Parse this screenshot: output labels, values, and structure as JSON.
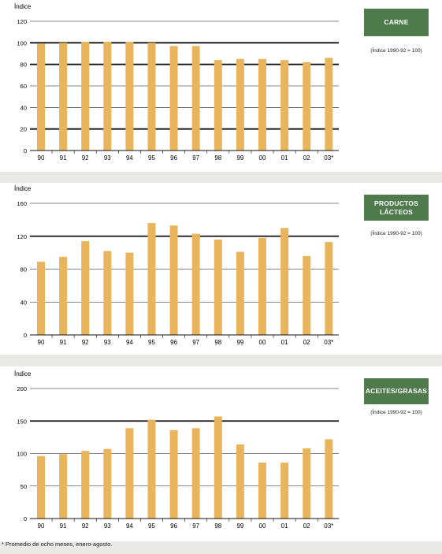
{
  "footnote": "* Promedio de ocho meses, enero-agosto.",
  "chart_data": [
    {
      "type": "bar",
      "title": "CARNE",
      "subtitle": "(Índice 1990-92 = 100)",
      "ylabel": "Índice",
      "xlabel": "",
      "categories": [
        "90",
        "91",
        "92",
        "93",
        "94",
        "95",
        "96",
        "97",
        "98",
        "99",
        "00",
        "01",
        "02",
        "03*"
      ],
      "values": [
        99,
        100,
        101,
        101,
        101,
        100,
        97,
        97,
        84,
        85,
        85,
        84,
        82,
        86
      ],
      "ylim": [
        0,
        120
      ],
      "yticks": [
        0,
        20,
        40,
        60,
        80,
        100,
        120
      ],
      "bold_gridlines": [
        20,
        80,
        100
      ],
      "bar_color": "#e8b55c",
      "grid": true,
      "legend": "none"
    },
    {
      "type": "bar",
      "title": "PRODUCTOS\nLÁCTEOS",
      "subtitle": "(Índice 1990-92 = 100)",
      "ylabel": "Índice",
      "xlabel": "",
      "categories": [
        "90",
        "91",
        "92",
        "93",
        "94",
        "95",
        "96",
        "97",
        "98",
        "99",
        "00",
        "01",
        "02",
        "03*"
      ],
      "values": [
        89,
        95,
        114,
        102,
        100,
        136,
        133,
        123,
        116,
        101,
        118,
        130,
        96,
        113
      ],
      "ylim": [
        0,
        160
      ],
      "yticks": [
        0,
        40,
        80,
        120,
        160
      ],
      "bold_gridlines": [
        120
      ],
      "bar_color": "#e8b55c",
      "grid": true,
      "legend": "none"
    },
    {
      "type": "bar",
      "title": "ACEITES/GRASAS",
      "subtitle": "(Índice 1990-92 = 100)",
      "ylabel": "Índice",
      "xlabel": "",
      "categories": [
        "90",
        "91",
        "92",
        "93",
        "94",
        "95",
        "96",
        "97",
        "98",
        "99",
        "00",
        "01",
        "02",
        "03*"
      ],
      "values": [
        96,
        99,
        104,
        107,
        139,
        152,
        136,
        139,
        157,
        114,
        86,
        86,
        108,
        122
      ],
      "ylim": [
        0,
        200
      ],
      "yticks": [
        0,
        50,
        100,
        150,
        200
      ],
      "bold_gridlines": [
        150
      ],
      "bar_color": "#e8b55c",
      "grid": true,
      "legend": "none"
    }
  ]
}
